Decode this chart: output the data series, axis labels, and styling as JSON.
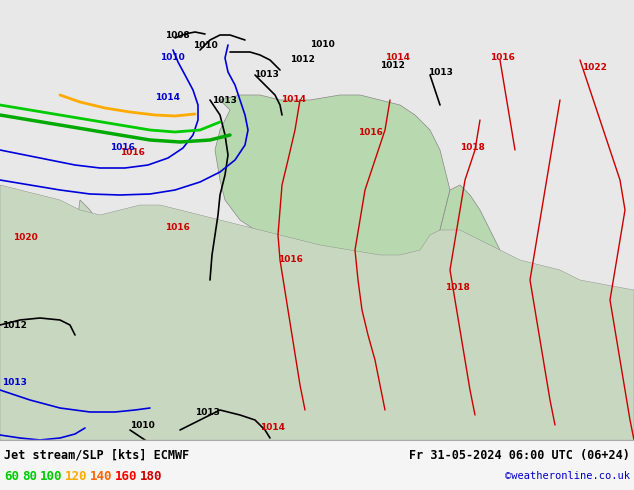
{
  "title_left": "Jet stream/SLP [kts] ECMWF",
  "title_right": "Fr 31-05-2024 06:00 UTC (06+24)",
  "credit": "©weatheronline.co.uk",
  "legend_values": [
    "60",
    "80",
    "100",
    "120",
    "140",
    "160",
    "180"
  ],
  "legend_colors": [
    "#00cc00",
    "#00cc00",
    "#00cc00",
    "#ffaa00",
    "#ff6600",
    "#ff0000",
    "#cc0000"
  ],
  "bg_color": "#e8e8e8",
  "map_bg": "#d0e8d0",
  "sea_color": "#c8d8f0",
  "label_color_black": "#000000",
  "label_color_red": "#cc0000",
  "label_color_blue": "#0000cc",
  "bottom_bar_color": "#f0f0f0",
  "fig_width": 6.34,
  "fig_height": 4.9,
  "dpi": 100,
  "title_fontsize": 8.5,
  "legend_fontsize": 9,
  "credit_fontsize": 7.5
}
